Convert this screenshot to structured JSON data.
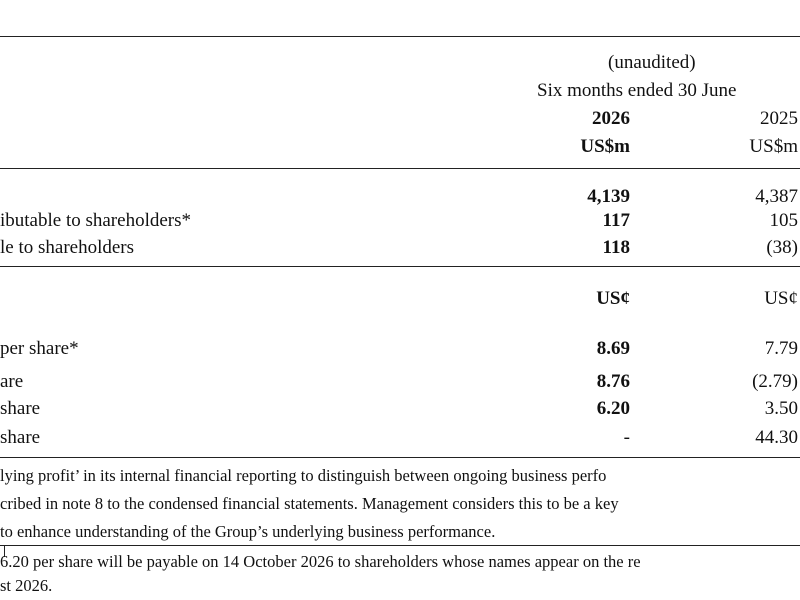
{
  "header": {
    "unaudited": "(unaudited)",
    "period": "Six months ended 30 June",
    "year_current": "2026",
    "year_prior": "2025",
    "unit_current": "US$m",
    "unit_prior": "US$m",
    "per_share_unit_current": "US¢",
    "per_share_unit_prior": "US¢"
  },
  "rows_amounts": [
    {
      "label": "",
      "current": "4,139",
      "prior": "4,387"
    },
    {
      "label": "ibutable to shareholders*",
      "current": "117",
      "prior": "105"
    },
    {
      "label": "le to shareholders",
      "current": "118",
      "prior": "(38)"
    }
  ],
  "rows_per_share": [
    {
      "label": "per share*",
      "current": "8.69",
      "prior": "7.79"
    },
    {
      "label": "are",
      "current": "8.76",
      "prior": "(2.79)"
    },
    {
      "label": "share",
      "current": "6.20",
      "prior": "3.50"
    },
    {
      "label": "share",
      "current": "-",
      "prior": "44.30"
    }
  ],
  "footnotes": {
    "line1": "lying profit’ in its internal financial reporting to distinguish between ongoing business perfo",
    "line2": "cribed in note 8 to the condensed financial statements.  Management considers this to be a key",
    "line3": "to enhance understanding of the Group’s underlying business performance.",
    "line4": "6.20 per share will be payable on 14 October 2026 to shareholders whose names appear on the re",
    "line5": "st 2026."
  }
}
